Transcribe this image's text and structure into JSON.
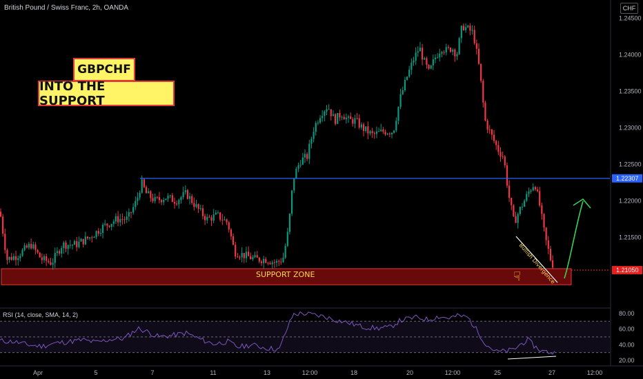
{
  "header": {
    "symbol_title": "British Pound / Swiss Franc, 2h, OANDA",
    "currency_badge": "CHF"
  },
  "annotations": {
    "title_line1": "GBPCHF",
    "title_line2": "INTO THE SUPPORT",
    "support_zone_label": "SUPPORT ZONE",
    "divergence_label": "Bullish Divergence"
  },
  "price_axis": {
    "ticks": [
      "1.24500",
      "1.24000",
      "1.23500",
      "1.23000",
      "1.22500",
      "1.22000",
      "1.21500"
    ],
    "tags": [
      {
        "label": "1.22307",
        "color": "#2962ff",
        "value": 1.22307
      },
      {
        "label": "1.21050",
        "color": "#e91e1e",
        "value": 1.2105
      }
    ],
    "ylim": [
      1.2055,
      1.2475
    ]
  },
  "rsi": {
    "label": "RSI (14, close, SMA, 14, 2)",
    "ticks": [
      "80.00",
      "60.00",
      "40.00",
      "20.00"
    ],
    "tick_values": [
      80,
      60,
      40,
      20
    ],
    "ylim": [
      13,
      86
    ],
    "band": [
      30,
      70
    ]
  },
  "time_axis": {
    "labels": [
      "Apr",
      "5",
      "7",
      "11",
      "13",
      "12:00",
      "18",
      "20",
      "12:00",
      "25",
      "27",
      "12:00"
    ]
  },
  "colors": {
    "up": "#089981",
    "down": "#f23645",
    "resistance_line": "#2962ff",
    "support_zone": "#7a0c0c",
    "arrow": "#39d353",
    "rsi_line": "#7e57c2"
  },
  "chart_data": {
    "type": "candlestick",
    "title": "British Pound / Swiss Franc, 2h, OANDA",
    "xlabel": "",
    "ylabel": "",
    "ylim": [
      1.2055,
      1.2475
    ],
    "horizontal_lines": [
      {
        "value": 1.22307,
        "label": "1.22307"
      }
    ],
    "support_zone": [
      1.2085,
      1.2107
    ],
    "close_path": [
      [
        0,
        1.2185
      ],
      [
        10,
        1.212
      ],
      [
        25,
        1.2125
      ],
      [
        45,
        1.214
      ],
      [
        60,
        1.212
      ],
      [
        75,
        1.2115
      ],
      [
        90,
        1.214
      ],
      [
        110,
        1.214
      ],
      [
        130,
        1.215
      ],
      [
        150,
        1.2165
      ],
      [
        170,
        1.2175
      ],
      [
        185,
        1.2175
      ],
      [
        198,
        1.22
      ],
      [
        205,
        1.2225
      ],
      [
        212,
        1.221
      ],
      [
        225,
        1.22
      ],
      [
        240,
        1.2205
      ],
      [
        255,
        1.22
      ],
      [
        270,
        1.221
      ],
      [
        278,
        1.22
      ],
      [
        290,
        1.2185
      ],
      [
        300,
        1.2175
      ],
      [
        315,
        1.218
      ],
      [
        330,
        1.217
      ],
      [
        340,
        1.213
      ],
      [
        355,
        1.2125
      ],
      [
        370,
        1.212
      ],
      [
        385,
        1.212
      ],
      [
        400,
        1.2115
      ],
      [
        410,
        1.212
      ],
      [
        418,
        1.216
      ],
      [
        425,
        1.223
      ],
      [
        435,
        1.2255
      ],
      [
        445,
        1.226
      ],
      [
        455,
        1.23
      ],
      [
        465,
        1.232
      ],
      [
        475,
        1.233
      ],
      [
        485,
        1.231
      ],
      [
        495,
        1.232
      ],
      [
        505,
        1.231
      ],
      [
        515,
        1.231
      ],
      [
        525,
        1.23
      ],
      [
        540,
        1.229
      ],
      [
        555,
        1.2295
      ],
      [
        570,
        1.2295
      ],
      [
        580,
        1.234
      ],
      [
        590,
        1.237
      ],
      [
        600,
        1.2395
      ],
      [
        608,
        1.241
      ],
      [
        615,
        1.239
      ],
      [
        622,
        1.2375
      ],
      [
        630,
        1.2395
      ],
      [
        640,
        1.241
      ],
      [
        648,
        1.2405
      ],
      [
        655,
        1.241
      ],
      [
        662,
        1.24
      ],
      [
        670,
        1.244
      ],
      [
        678,
        1.2435
      ],
      [
        686,
        1.243
      ],
      [
        695,
        1.238
      ],
      [
        703,
        1.231
      ],
      [
        712,
        1.229
      ],
      [
        722,
        1.227
      ],
      [
        730,
        1.226
      ],
      [
        737,
        1.221
      ],
      [
        745,
        1.217
      ],
      [
        752,
        1.2185
      ],
      [
        760,
        1.22
      ],
      [
        768,
        1.2215
      ],
      [
        775,
        1.2225
      ],
      [
        782,
        1.2195
      ],
      [
        790,
        1.215
      ],
      [
        798,
        1.212
      ],
      [
        805,
        1.2105
      ]
    ],
    "rsi_path": [
      [
        0,
        45
      ],
      [
        20,
        44
      ],
      [
        40,
        40
      ],
      [
        60,
        38
      ],
      [
        80,
        42
      ],
      [
        100,
        44
      ],
      [
        120,
        46
      ],
      [
        140,
        43
      ],
      [
        160,
        47
      ],
      [
        180,
        48
      ],
      [
        200,
        61
      ],
      [
        210,
        58
      ],
      [
        230,
        50
      ],
      [
        250,
        52
      ],
      [
        270,
        55
      ],
      [
        290,
        47
      ],
      [
        310,
        41
      ],
      [
        330,
        44
      ],
      [
        345,
        37
      ],
      [
        365,
        40
      ],
      [
        385,
        36
      ],
      [
        405,
        34
      ],
      [
        415,
        58
      ],
      [
        425,
        79
      ],
      [
        440,
        80
      ],
      [
        455,
        78
      ],
      [
        470,
        76
      ],
      [
        485,
        72
      ],
      [
        505,
        68
      ],
      [
        525,
        63
      ],
      [
        545,
        61
      ],
      [
        565,
        62
      ],
      [
        578,
        70
      ],
      [
        590,
        73
      ],
      [
        605,
        75
      ],
      [
        620,
        72
      ],
      [
        635,
        76
      ],
      [
        650,
        74
      ],
      [
        665,
        77
      ],
      [
        678,
        75
      ],
      [
        690,
        60
      ],
      [
        705,
        40
      ],
      [
        720,
        31
      ],
      [
        735,
        32
      ],
      [
        745,
        34
      ],
      [
        755,
        41
      ],
      [
        765,
        46
      ],
      [
        775,
        38
      ],
      [
        785,
        32
      ],
      [
        800,
        30
      ]
    ]
  }
}
